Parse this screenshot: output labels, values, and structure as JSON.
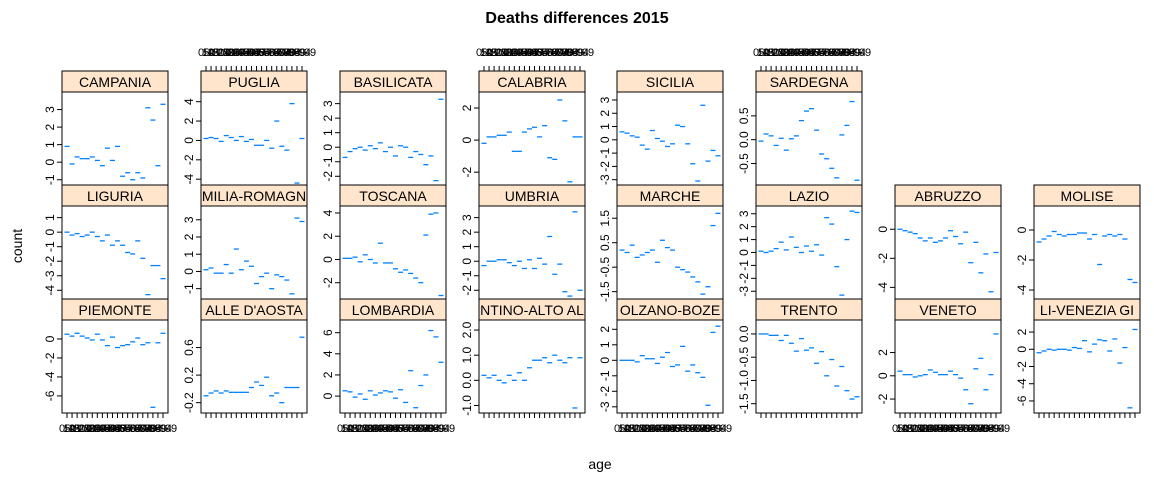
{
  "title": "Deaths differences 2015",
  "xlabel": "age",
  "ylabel": "count",
  "colors": {
    "strip_fill": "#ffe5cc",
    "mark": "#0080ff",
    "frame": "#000000",
    "text": "#000000"
  },
  "chart_data": {
    "type": "scatter",
    "layout": "lattice",
    "title": "Deaths differences 2015",
    "xlabel": "age",
    "ylabel": "count",
    "categories": [
      "0-4",
      "5-9",
      "10-14",
      "15-19",
      "20-24",
      "25-29",
      "30-34",
      "35-39",
      "40-44",
      "45-49",
      "50-54",
      "55-59",
      "60-64",
      "65-69",
      "70-74",
      "75-79",
      "80-84",
      "85-89",
      "90-94",
      "95-99"
    ],
    "panels": [
      {
        "name": "CAMPANIA",
        "strip": "CAMPANIA",
        "yticks": [
          "-1",
          "0",
          "1",
          "2",
          "3"
        ],
        "tickvals": [
          -1,
          0,
          1,
          2,
          3
        ],
        "ylim": [
          -1.3,
          4.0
        ],
        "values": [
          0.9,
          -0.1,
          0.3,
          0.2,
          0.2,
          0.3,
          0.1,
          -0.2,
          0.8,
          0.1,
          0.9,
          -0.8,
          -0.6,
          -1.0,
          -0.6,
          -0.9,
          3.1,
          2.4,
          -0.2,
          3.3
        ]
      },
      {
        "name": "PUGLIA",
        "strip": "PUGLIA",
        "yticks": [
          "-4",
          "-2",
          "0",
          "2",
          "4"
        ],
        "tickvals": [
          -4,
          -2,
          0,
          2,
          4
        ],
        "ylim": [
          -4.6,
          5.0
        ],
        "values": [
          0.2,
          0.3,
          0.2,
          -0.1,
          0.5,
          0.3,
          0.0,
          0.4,
          -0.1,
          0.1,
          -0.5,
          -0.5,
          0.0,
          -0.8,
          2.0,
          -0.6,
          -1.0,
          3.8,
          -4.4,
          0.2
        ]
      },
      {
        "name": "BASILICATA",
        "strip": "BASILICATA",
        "yticks": [
          "-2",
          "-1",
          "0",
          "1",
          "2",
          "3"
        ],
        "tickvals": [
          -2,
          -1,
          0,
          1,
          2,
          3
        ],
        "ylim": [
          -2.6,
          3.8
        ],
        "values": [
          -0.7,
          -0.3,
          -0.1,
          0.0,
          -0.2,
          0.1,
          -0.1,
          0.3,
          -0.3,
          0.0,
          -0.6,
          0.1,
          0.0,
          -0.7,
          -0.3,
          -0.5,
          -1.2,
          -0.6,
          -2.3,
          3.3
        ]
      },
      {
        "name": "CALABRIA",
        "strip": "CALABRIA",
        "yticks": [
          "-2",
          "0",
          "2"
        ],
        "tickvals": [
          -2,
          0,
          2
        ],
        "ylim": [
          -2.8,
          3.0
        ],
        "values": [
          -0.2,
          0.2,
          0.2,
          0.3,
          0.3,
          0.5,
          -0.7,
          -0.7,
          0.5,
          0.7,
          0.8,
          0.2,
          0.9,
          -1.1,
          -1.2,
          2.5,
          1.2,
          -2.6,
          0.2,
          0.2
        ]
      },
      {
        "name": "SICILIA",
        "strip": "SICILIA",
        "yticks": [
          "-3",
          "-2",
          "-1",
          "0",
          "1",
          "2",
          "3"
        ],
        "tickvals": [
          -3,
          -2,
          -1,
          0,
          1,
          2,
          3
        ],
        "ylim": [
          -3.4,
          3.6
        ],
        "values": [
          0.6,
          0.5,
          0.3,
          0.2,
          -0.4,
          -0.7,
          0.7,
          0.1,
          -0.1,
          -0.5,
          -0.3,
          1.1,
          1.0,
          -0.3,
          -1.8,
          -3.1,
          2.6,
          -1.6,
          -0.8,
          -1.2
        ]
      },
      {
        "name": "SARDEGNA",
        "strip": "SARDEGNA",
        "yticks": [
          "-0.5",
          "0.0",
          "0.5"
        ],
        "tickvals": [
          -0.5,
          0,
          0.5
        ],
        "ylim": [
          -0.95,
          1.0
        ],
        "values": [
          -0.03,
          0.12,
          0.08,
          -0.12,
          0.03,
          -0.22,
          0.02,
          0.08,
          0.4,
          0.6,
          0.65,
          0.2,
          -0.3,
          -0.4,
          -0.6,
          -0.8,
          0.1,
          0.3,
          0.8,
          -0.85
        ]
      },
      {
        "name": "LIGURIA",
        "strip": "LIGURIA",
        "yticks": [
          "-4",
          "-3",
          "-2",
          "-1",
          "0",
          "1"
        ],
        "tickvals": [
          -4,
          -3,
          -2,
          -1,
          0,
          1
        ],
        "ylim": [
          -4.6,
          1.8
        ],
        "values": [
          0.0,
          -0.2,
          -0.1,
          -0.3,
          -0.2,
          0.0,
          -0.3,
          -0.6,
          -0.2,
          -0.9,
          -0.6,
          -0.9,
          -1.4,
          -1.5,
          -0.6,
          -1.8,
          -4.3,
          -2.3,
          -2.3,
          -3.2
        ]
      },
      {
        "name": "EMILIA-ROMAGNA",
        "strip": "MILIA-ROMAGN",
        "yticks": [
          "-1",
          "0",
          "1",
          "2",
          "3"
        ],
        "tickvals": [
          -1,
          0,
          1,
          2,
          3
        ],
        "ylim": [
          -1.6,
          3.8
        ],
        "values": [
          0.1,
          0.2,
          -0.1,
          -0.1,
          0.4,
          -0.1,
          1.3,
          0.1,
          0.6,
          0.3,
          -0.7,
          -0.3,
          -0.1,
          -1.0,
          -0.2,
          -0.3,
          -0.5,
          -1.3,
          3.1,
          2.9
        ]
      },
      {
        "name": "TOSCANA",
        "strip": "TOSCANA",
        "yticks": [
          "-2",
          "0",
          "2",
          "4"
        ],
        "tickvals": [
          -2,
          0,
          2,
          4
        ],
        "ylim": [
          -3.4,
          4.6
        ],
        "values": [
          0.1,
          0.1,
          0.2,
          -0.2,
          0.4,
          0.0,
          -0.3,
          1.4,
          -0.3,
          -0.3,
          -0.8,
          -1.1,
          -0.9,
          -1.2,
          -1.6,
          -2.0,
          2.1,
          3.9,
          4.0,
          -3.1
        ]
      },
      {
        "name": "UMBRIA",
        "strip": "UMBRIA",
        "yticks": [
          "-2",
          "-1",
          "0",
          "1",
          "2",
          "3"
        ],
        "tickvals": [
          -2,
          -1,
          0,
          1,
          2,
          3
        ],
        "ylim": [
          -2.6,
          3.8
        ],
        "values": [
          -0.3,
          0.0,
          0.0,
          0.1,
          0.1,
          -0.1,
          -0.3,
          0.0,
          -0.5,
          0.1,
          -0.5,
          0.2,
          -0.2,
          1.7,
          -0.9,
          -0.2,
          -2.1,
          -2.4,
          3.4,
          -2.0
        ]
      },
      {
        "name": "MARCHE",
        "strip": "MARCHE",
        "yticks": [
          "-1.5",
          "-0.5",
          "0.5",
          "1.5"
        ],
        "tickvals": [
          -1.5,
          -0.5,
          0.5,
          1.5
        ],
        "ylim": [
          -1.8,
          2.0
        ],
        "values": [
          0.2,
          0.1,
          0.4,
          -0.1,
          0.0,
          0.1,
          0.2,
          -0.3,
          0.6,
          0.3,
          0.2,
          -0.5,
          -0.6,
          -0.7,
          -0.9,
          -1.1,
          -1.6,
          -1.3,
          1.2,
          1.7
        ]
      },
      {
        "name": "LAZIO",
        "strip": "LAZIO",
        "yticks": [
          "-3",
          "-2",
          "-1",
          "0",
          "1",
          "2",
          "3"
        ],
        "tickvals": [
          -3,
          -2,
          -1,
          0,
          1,
          2,
          3
        ],
        "ylim": [
          -3.6,
          3.6
        ],
        "values": [
          0.1,
          0.0,
          0.1,
          0.3,
          0.8,
          0.2,
          1.2,
          0.4,
          0.0,
          0.5,
          0.1,
          0.6,
          -0.2,
          2.7,
          2.2,
          -1.1,
          -3.3,
          1.0,
          3.2,
          3.1
        ]
      },
      {
        "name": "ABRUZZO",
        "strip": "ABRUZZO",
        "yticks": [
          "-4",
          "-2",
          "0"
        ],
        "tickvals": [
          -4,
          -2,
          0
        ],
        "ylim": [
          -4.8,
          1.6
        ],
        "values": [
          0.0,
          -0.1,
          -0.2,
          -0.3,
          -0.6,
          -0.8,
          -0.6,
          -0.9,
          -0.8,
          -0.6,
          -0.1,
          -0.5,
          -1.0,
          -0.2,
          -2.3,
          -0.9,
          -3.0,
          -1.7,
          -4.3,
          -1.6
        ]
      },
      {
        "name": "MOLISE",
        "strip": "MOLISE",
        "yticks": [
          "-4",
          "-2",
          "0"
        ],
        "tickvals": [
          -4,
          -2,
          0
        ],
        "ylim": [
          -4.6,
          1.6
        ],
        "values": [
          -0.8,
          -0.6,
          -0.4,
          -0.1,
          -0.3,
          -0.4,
          -0.3,
          -0.3,
          -0.2,
          -0.2,
          -0.6,
          -0.3,
          -2.3,
          -0.4,
          -0.3,
          -0.4,
          -0.3,
          -0.6,
          -3.3,
          -3.5
        ]
      },
      {
        "name": "PIEMONTE",
        "strip": "PIEMONTE",
        "yticks": [
          "-6",
          "-4",
          "-2",
          "0"
        ],
        "tickvals": [
          -6,
          -4,
          -2,
          0
        ],
        "ylim": [
          -7.8,
          2.0
        ],
        "values": [
          0.5,
          0.3,
          0.6,
          0.3,
          0.1,
          -0.1,
          0.5,
          -0.1,
          -0.7,
          0.2,
          -0.9,
          -0.7,
          -0.6,
          -0.3,
          0.1,
          -0.6,
          -0.4,
          -7.2,
          -0.4,
          0.6
        ]
      },
      {
        "name": "VALLE D'AOSTA",
        "strip": "ALLE D'AOSTA",
        "yticks": [
          "-0.2",
          "0.2",
          "0.6"
        ],
        "tickvals": [
          -0.2,
          0.2,
          0.6
        ],
        "ylim": [
          -0.35,
          1.0
        ],
        "values": [
          -0.1,
          -0.06,
          -0.03,
          -0.06,
          -0.03,
          -0.05,
          -0.05,
          -0.05,
          -0.05,
          0.02,
          0.1,
          0.05,
          0.17,
          -0.1,
          -0.06,
          -0.2,
          0.02,
          0.02,
          0.02,
          0.75
        ]
      },
      {
        "name": "LOMBARDIA",
        "strip": "LOMBARDIA",
        "yticks": [
          "0",
          "2",
          "4",
          "6"
        ],
        "tickvals": [
          0,
          2,
          4,
          6
        ],
        "ylim": [
          -1.6,
          7.2
        ],
        "values": [
          0.5,
          0.4,
          -0.1,
          0.2,
          -0.3,
          0.5,
          0.1,
          0.3,
          0.5,
          0.4,
          -0.2,
          0.6,
          -0.6,
          2.4,
          -1.1,
          1.0,
          2.0,
          6.2,
          5.6,
          3.2
        ]
      },
      {
        "name": "TRENTINO-ALTO ADIGE",
        "strip": "NTINO-ALTO AL",
        "yticks": [
          "-1.0",
          "0.0",
          "1.0",
          "2.0"
        ],
        "tickvals": [
          -1,
          0,
          1,
          2
        ],
        "ylim": [
          -1.3,
          2.4
        ],
        "values": [
          0.2,
          0.1,
          0.2,
          0.0,
          -0.1,
          0.2,
          0.0,
          0.3,
          0.0,
          0.5,
          0.8,
          0.8,
          0.9,
          0.7,
          1.0,
          0.8,
          0.7,
          0.9,
          -1.1,
          0.9
        ]
      },
      {
        "name": "BOLZANO-BOZEN",
        "strip": "OLZANO-BOZE",
        "yticks": [
          "-3",
          "-2",
          "-1",
          "0",
          "1",
          "2"
        ],
        "tickvals": [
          -3,
          -2,
          -1,
          0,
          1,
          2
        ],
        "ylim": [
          -3.4,
          2.6
        ],
        "values": [
          0.0,
          0.0,
          0.0,
          -0.1,
          0.3,
          0.1,
          0.1,
          -0.2,
          0.2,
          0.5,
          -0.4,
          -0.3,
          0.9,
          -0.7,
          -0.3,
          -0.8,
          -1.1,
          -2.9,
          1.8,
          2.2
        ]
      },
      {
        "name": "TRENTO",
        "strip": "TRENTO",
        "yticks": [
          "-1.5",
          "-1.0",
          "-0.5",
          "0.0"
        ],
        "tickvals": [
          -1.5,
          -1,
          -0.5,
          0
        ],
        "ylim": [
          -1.7,
          0.3
        ],
        "values": [
          0.0,
          0.0,
          -0.03,
          -0.03,
          -0.14,
          -0.03,
          -0.2,
          -0.37,
          -0.1,
          -0.35,
          -0.3,
          -0.63,
          -0.38,
          -0.9,
          -0.55,
          -1.12,
          -0.7,
          -1.22,
          -1.4,
          -1.35
        ]
      },
      {
        "name": "VENETO",
        "strip": "VENETO",
        "yticks": [
          "-2",
          "0",
          "2"
        ],
        "tickvals": [
          -2,
          0,
          2
        ],
        "ylim": [
          -3.2,
          4.8
        ],
        "values": [
          0.4,
          0.1,
          0.1,
          -0.1,
          0.0,
          0.1,
          0.5,
          0.3,
          0.1,
          0.1,
          0.4,
          0.1,
          -0.2,
          -1.2,
          -2.4,
          0.6,
          1.5,
          -1.2,
          0.1,
          3.6
        ]
      },
      {
        "name": "FRIULI-VENEZIA GIULIA",
        "strip": "LI-VENEZIA GI",
        "yticks": [
          "-6",
          "-4",
          "-2",
          "0",
          "2"
        ],
        "tickvals": [
          -6,
          -4,
          -2,
          0,
          2
        ],
        "ylim": [
          -7.4,
          3.4
        ],
        "values": [
          -0.4,
          -0.2,
          0.0,
          -0.1,
          0.0,
          0.0,
          -0.1,
          0.2,
          0.1,
          1.0,
          -0.3,
          0.6,
          1.1,
          1.0,
          -0.2,
          1.2,
          -1.6,
          0.2,
          -6.8,
          2.3
        ]
      }
    ]
  }
}
